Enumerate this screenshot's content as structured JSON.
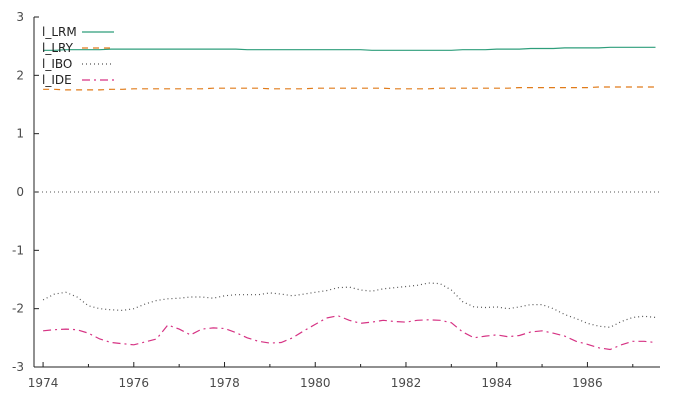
{
  "chart_data": {
    "type": "line",
    "title": "",
    "xlabel": "",
    "ylabel": "",
    "xlim": [
      1973.8,
      1987.6
    ],
    "ylim": [
      -3,
      3
    ],
    "x_ticks": [
      "1974",
      "1976",
      "1978",
      "1980",
      "1982",
      "1984",
      "1986"
    ],
    "y_ticks": [
      "3",
      "2",
      "1",
      "0",
      "-1",
      "-2",
      "-3"
    ],
    "grid": false,
    "legend_position": "top-left",
    "x": [
      1974.0,
      1974.25,
      1974.5,
      1974.75,
      1975.0,
      1975.25,
      1975.5,
      1975.75,
      1976.0,
      1976.25,
      1976.5,
      1976.75,
      1977.0,
      1977.25,
      1977.5,
      1977.75,
      1978.0,
      1978.25,
      1978.5,
      1978.75,
      1979.0,
      1979.25,
      1979.5,
      1979.75,
      1980.0,
      1980.25,
      1980.5,
      1980.75,
      1981.0,
      1981.25,
      1981.5,
      1981.75,
      1982.0,
      1982.25,
      1982.5,
      1982.75,
      1983.0,
      1983.25,
      1983.5,
      1983.75,
      1984.0,
      1984.25,
      1984.5,
      1984.75,
      1985.0,
      1985.25,
      1985.5,
      1985.75,
      1986.0,
      1986.25,
      1986.5,
      1986.75,
      1987.0,
      1987.25,
      1987.5
    ],
    "series": [
      {
        "name": "l_LRM",
        "color": "#2e9e7b",
        "dash": "solid",
        "values": [
          2.43,
          2.43,
          2.44,
          2.44,
          2.44,
          2.44,
          2.45,
          2.45,
          2.45,
          2.45,
          2.45,
          2.45,
          2.45,
          2.45,
          2.45,
          2.45,
          2.45,
          2.45,
          2.44,
          2.44,
          2.44,
          2.44,
          2.44,
          2.44,
          2.44,
          2.44,
          2.44,
          2.44,
          2.44,
          2.43,
          2.43,
          2.43,
          2.43,
          2.43,
          2.43,
          2.43,
          2.43,
          2.44,
          2.44,
          2.44,
          2.45,
          2.45,
          2.45,
          2.46,
          2.46,
          2.46,
          2.47,
          2.47,
          2.47,
          2.47,
          2.48,
          2.48,
          2.48,
          2.48,
          2.48
        ]
      },
      {
        "name": "l_LRY",
        "color": "#e07b1a",
        "dash": "dashed",
        "values": [
          1.76,
          1.76,
          1.75,
          1.75,
          1.75,
          1.75,
          1.76,
          1.76,
          1.77,
          1.77,
          1.77,
          1.77,
          1.77,
          1.77,
          1.77,
          1.78,
          1.78,
          1.78,
          1.78,
          1.78,
          1.77,
          1.77,
          1.77,
          1.77,
          1.78,
          1.78,
          1.78,
          1.78,
          1.78,
          1.78,
          1.78,
          1.77,
          1.77,
          1.77,
          1.77,
          1.78,
          1.78,
          1.78,
          1.78,
          1.78,
          1.78,
          1.78,
          1.79,
          1.79,
          1.79,
          1.79,
          1.79,
          1.79,
          1.79,
          1.8,
          1.8,
          1.8,
          1.8,
          1.8,
          1.8
        ]
      },
      {
        "name": "l_IBO",
        "color": "#555555",
        "dash": "dotted",
        "values": [
          -1.85,
          -1.75,
          -1.72,
          -1.8,
          -1.95,
          -2.0,
          -2.02,
          -2.03,
          -2.0,
          -1.92,
          -1.86,
          -1.83,
          -1.82,
          -1.8,
          -1.8,
          -1.82,
          -1.78,
          -1.76,
          -1.76,
          -1.76,
          -1.73,
          -1.75,
          -1.78,
          -1.75,
          -1.72,
          -1.69,
          -1.64,
          -1.63,
          -1.68,
          -1.7,
          -1.66,
          -1.64,
          -1.62,
          -1.6,
          -1.56,
          -1.57,
          -1.68,
          -1.88,
          -1.97,
          -1.98,
          -1.97,
          -2.0,
          -1.97,
          -1.93,
          -1.93,
          -2.0,
          -2.1,
          -2.17,
          -2.25,
          -2.3,
          -2.32,
          -2.22,
          -2.15,
          -2.13,
          -2.15
        ]
      },
      {
        "name": "l_IDE",
        "color": "#d63384",
        "dash": "dashdot",
        "values": [
          -2.38,
          -2.36,
          -2.35,
          -2.36,
          -2.42,
          -2.52,
          -2.58,
          -2.6,
          -2.62,
          -2.57,
          -2.52,
          -2.28,
          -2.35,
          -2.45,
          -2.35,
          -2.33,
          -2.34,
          -2.41,
          -2.5,
          -2.56,
          -2.59,
          -2.58,
          -2.5,
          -2.38,
          -2.27,
          -2.16,
          -2.12,
          -2.2,
          -2.25,
          -2.23,
          -2.2,
          -2.22,
          -2.23,
          -2.2,
          -2.19,
          -2.2,
          -2.24,
          -2.4,
          -2.5,
          -2.47,
          -2.45,
          -2.48,
          -2.46,
          -2.4,
          -2.38,
          -2.42,
          -2.47,
          -2.56,
          -2.61,
          -2.67,
          -2.7,
          -2.62,
          -2.56,
          -2.56,
          -2.58
        ]
      }
    ]
  }
}
